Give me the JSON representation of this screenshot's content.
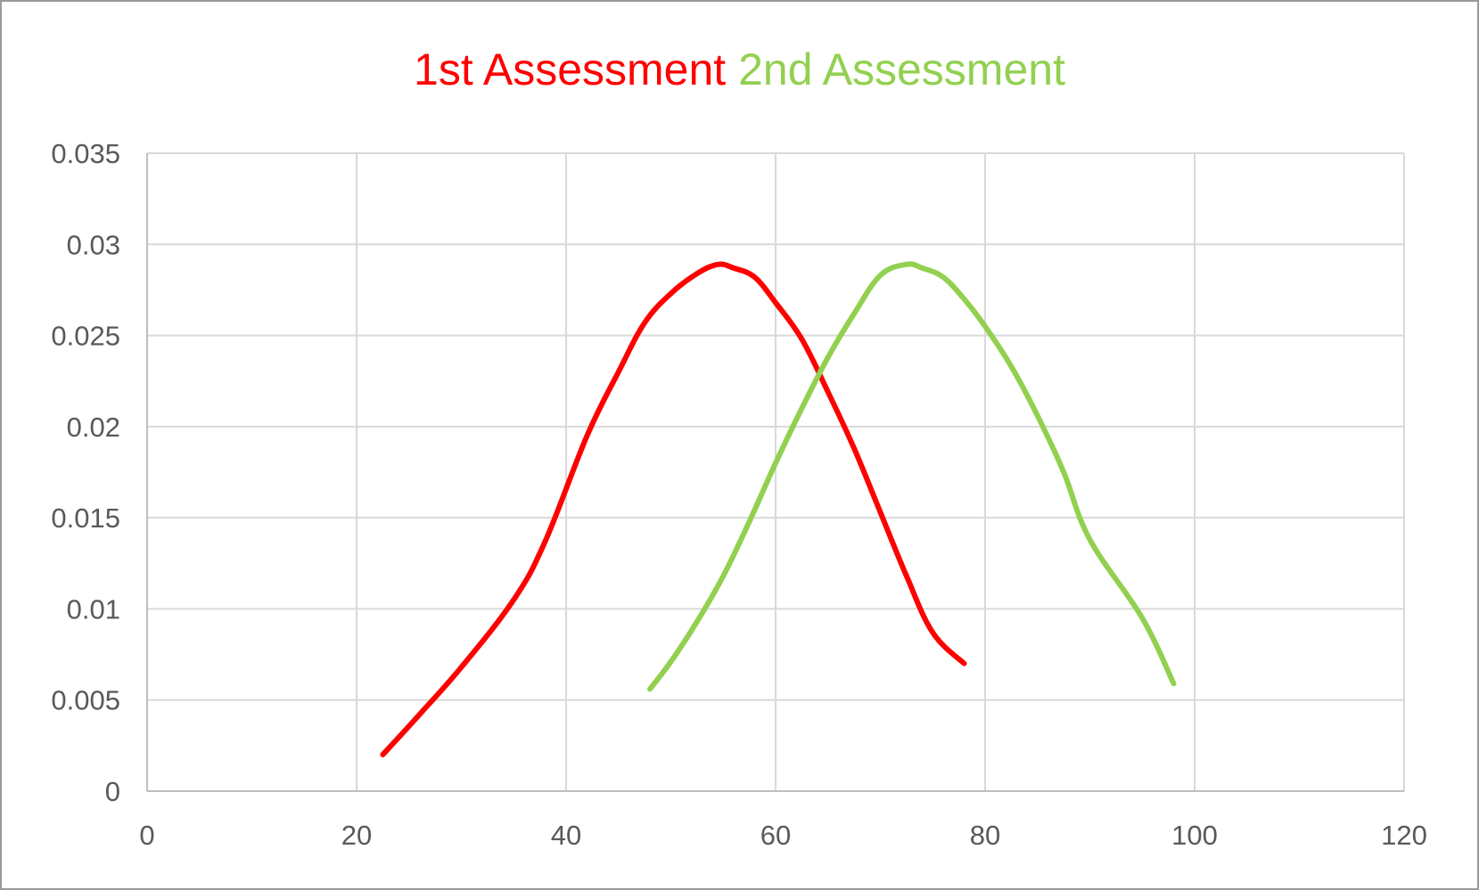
{
  "chart_data": {
    "type": "line",
    "title_parts": [
      {
        "text": "1st Assessment",
        "color": "#ff0000"
      },
      {
        "text": " ",
        "color": "#000000"
      },
      {
        "text": "2nd Assessment",
        "color": "#92d050"
      }
    ],
    "xlabel": "",
    "ylabel": "",
    "xlim": [
      0,
      120
    ],
    "ylim": [
      0,
      0.035
    ],
    "x_ticks": [
      "0",
      "20",
      "40",
      "60",
      "80",
      "100",
      "120"
    ],
    "y_ticks": [
      "0",
      "0.005",
      "0.01",
      "0.015",
      "0.02",
      "0.025",
      "0.03",
      "0.035"
    ],
    "grid": true,
    "legend": "none",
    "series": [
      {
        "color": "#ff0000",
        "points": [
          [
            22.5,
            0.002
          ],
          [
            26,
            0.0042
          ],
          [
            30,
            0.0068
          ],
          [
            35,
            0.0105
          ],
          [
            38,
            0.0137
          ],
          [
            42,
            0.0195
          ],
          [
            45,
            0.023
          ],
          [
            47.5,
            0.0257
          ],
          [
            50,
            0.0273
          ],
          [
            52.5,
            0.0284
          ],
          [
            54.5,
            0.0289
          ],
          [
            56,
            0.0287
          ],
          [
            58,
            0.0282
          ],
          [
            60,
            0.0268
          ],
          [
            62.5,
            0.0248
          ],
          [
            65,
            0.0219
          ],
          [
            67.5,
            0.0188
          ],
          [
            70,
            0.0153
          ],
          [
            72.5,
            0.0118
          ],
          [
            75,
            0.0087
          ],
          [
            78,
            0.007
          ]
        ]
      },
      {
        "color": "#92d050",
        "points": [
          [
            48,
            0.0056
          ],
          [
            50,
            0.0071
          ],
          [
            52.5,
            0.0093
          ],
          [
            55,
            0.0118
          ],
          [
            57.5,
            0.0148
          ],
          [
            60,
            0.018
          ],
          [
            62.5,
            0.021
          ],
          [
            65,
            0.0238
          ],
          [
            67.5,
            0.0262
          ],
          [
            70,
            0.0283
          ],
          [
            72.5,
            0.0289
          ],
          [
            74,
            0.0287
          ],
          [
            76,
            0.0282
          ],
          [
            78,
            0.027
          ],
          [
            80,
            0.0255
          ],
          [
            82.5,
            0.0233
          ],
          [
            85,
            0.0206
          ],
          [
            87.5,
            0.0175
          ],
          [
            90,
            0.0138
          ],
          [
            95,
            0.0095
          ],
          [
            98,
            0.0059
          ]
        ]
      }
    ]
  }
}
